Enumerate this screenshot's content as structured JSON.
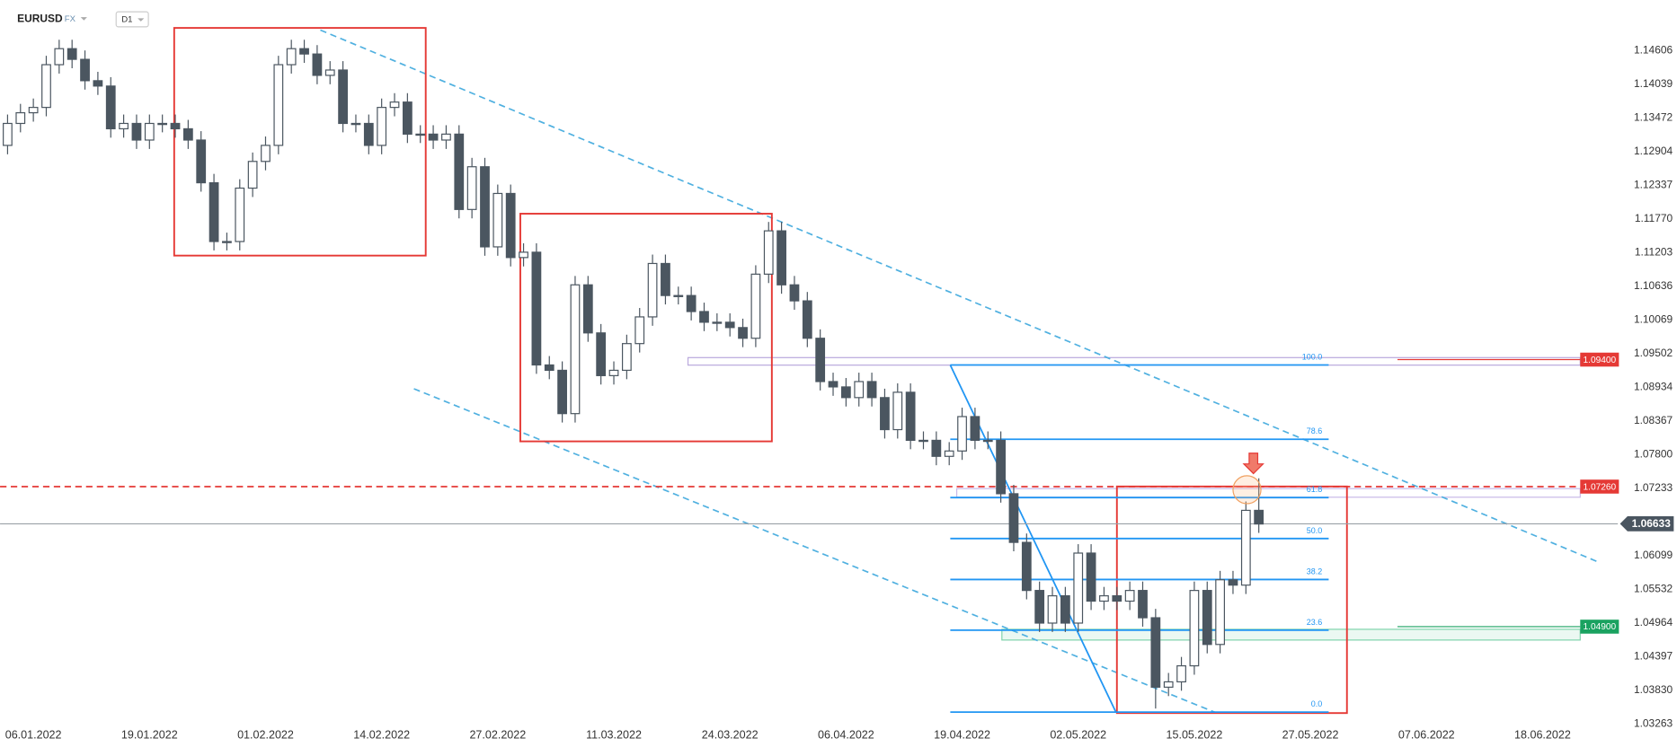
{
  "header": {
    "symbol": "EURUSD",
    "market": "FX",
    "interval": "D1"
  },
  "chart_data": {
    "type": "candlestick",
    "categories": [
      null,
      null,
      "06.01.2022",
      null,
      null,
      null,
      null,
      null,
      null,
      null,
      null,
      "19.01.2022",
      null,
      null,
      null,
      null,
      null,
      null,
      null,
      null,
      "01.02.2022",
      null,
      null,
      null,
      null,
      null,
      null,
      null,
      null,
      "14.02.2022",
      null,
      null,
      null,
      null,
      null,
      null,
      null,
      null,
      "27.02.2022",
      null,
      null,
      null,
      null,
      null,
      null,
      null,
      null,
      "11.03.2022",
      null,
      null,
      null,
      null,
      null,
      null,
      null,
      null,
      "24.03.2022",
      null,
      null,
      null,
      null,
      null,
      null,
      null,
      null,
      "06.04.2022",
      null,
      null,
      null,
      null,
      null,
      null,
      null,
      null,
      "19.04.2022",
      null,
      null,
      null,
      null,
      null,
      null,
      null,
      null,
      "02.05.2022",
      null,
      null,
      null,
      null,
      null,
      null,
      null,
      null,
      "15.05.2022",
      null,
      null,
      null,
      null,
      null,
      null,
      null,
      null,
      "27.05.2022",
      null,
      null,
      null,
      null,
      null,
      null,
      null,
      null,
      "07.06.2022",
      null,
      null,
      null,
      null,
      null,
      null,
      null,
      null,
      "18.06.2022",
      null,
      null,
      null,
      null,
      null
    ],
    "open": [
      1.1301,
      1.1338,
      1.1356,
      1.1365,
      1.1437,
      1.1464,
      1.1446,
      1.141,
      1.1401,
      1.1329,
      1.1338,
      1.131,
      1.1338,
      1.1338,
      1.1329,
      1.131,
      1.1238,
      1.1139,
      1.1139,
      1.1229,
      1.1274,
      1.1301,
      1.1437,
      1.1464,
      1.1455,
      1.1419,
      1.1428,
      1.1338,
      1.1338,
      1.1301,
      1.1365,
      1.1374,
      1.132,
      1.132,
      1.131,
      1.132,
      1.1193,
      1.1265,
      1.113,
      1.122,
      1.1112,
      1.1121,
      1.0931,
      1.0922,
      1.0849,
      1.1066,
      1.0985,
      1.0913,
      1.0922,
      1.0967,
      1.1012,
      1.1102,
      1.1048,
      1.1048,
      1.1021,
      1.1003,
      1.1003,
      1.0994,
      1.0976,
      1.1084,
      1.1157,
      1.1066,
      1.1039,
      1.0976,
      1.0903,
      1.0894,
      1.0876,
      1.0903,
      1.0876,
      1.0822,
      1.0885,
      1.0804,
      1.0804,
      1.0777,
      1.0786,
      1.0844,
      1.0804,
      1.0804,
      1.0714,
      1.0632,
      1.0551,
      1.0496,
      1.0542,
      1.0496,
      1.0614,
      1.0533,
      1.0542,
      1.0533,
      1.0551,
      1.0505,
      1.0388,
      1.0397,
      1.0424,
      1.0551,
      1.046,
      1.0569,
      1.056,
      1.0686,
      null,
      null,
      null,
      null,
      null,
      null,
      null,
      null,
      null,
      null,
      null,
      null,
      null,
      null,
      null,
      null,
      null,
      null,
      null,
      null,
      null,
      null,
      null,
      null,
      null,
      null,
      null
    ],
    "high": [
      1.1353,
      1.1371,
      1.138,
      1.1452,
      1.1479,
      1.1479,
      1.1461,
      1.1425,
      1.1416,
      1.1353,
      1.1353,
      1.1353,
      1.1353,
      1.1353,
      1.1344,
      1.1325,
      1.1253,
      1.1154,
      1.1244,
      1.1289,
      1.1316,
      1.1452,
      1.1479,
      1.1479,
      1.147,
      1.1443,
      1.1443,
      1.1353,
      1.1353,
      1.138,
      1.1389,
      1.1389,
      1.1335,
      1.1335,
      1.1335,
      1.1335,
      1.128,
      1.128,
      1.1235,
      1.1235,
      1.1136,
      1.1136,
      1.0946,
      1.0937,
      1.1081,
      1.1081,
      1.1,
      1.0937,
      1.0982,
      1.1027,
      1.1117,
      1.1117,
      1.1063,
      1.1063,
      1.1036,
      1.1018,
      1.1018,
      1.1009,
      1.1099,
      1.1172,
      1.1172,
      1.1081,
      1.1054,
      1.0991,
      1.0918,
      1.0909,
      1.0918,
      1.0918,
      1.0891,
      1.09,
      1.09,
      1.0819,
      1.0819,
      1.0801,
      1.0859,
      1.0859,
      1.0819,
      1.0819,
      1.0729,
      1.0647,
      1.0566,
      1.0557,
      1.0557,
      1.0629,
      1.0629,
      1.0557,
      1.0557,
      1.0566,
      1.0566,
      1.052,
      1.0412,
      1.0439,
      1.0566,
      1.0566,
      1.0584,
      1.0584,
      1.0701,
      1.074,
      null,
      null,
      null,
      null,
      null,
      null,
      null,
      null,
      null,
      null,
      null,
      null,
      null,
      null,
      null,
      null,
      null,
      null,
      null,
      null,
      null,
      null,
      null,
      null,
      null,
      null,
      null
    ],
    "low": [
      1.1286,
      1.1323,
      1.1341,
      1.135,
      1.1422,
      1.1431,
      1.1395,
      1.1386,
      1.1314,
      1.1314,
      1.1295,
      1.1295,
      1.1323,
      1.1314,
      1.1295,
      1.1223,
      1.1124,
      1.1124,
      1.1124,
      1.1214,
      1.1259,
      1.1286,
      1.1422,
      1.144,
      1.1404,
      1.1404,
      1.1323,
      1.1323,
      1.1286,
      1.1286,
      1.135,
      1.1305,
      1.1305,
      1.1295,
      1.1295,
      1.1178,
      1.1178,
      1.1115,
      1.1115,
      1.1097,
      1.1097,
      1.0916,
      1.0907,
      1.0834,
      1.0834,
      1.097,
      1.0898,
      1.0898,
      1.0907,
      1.0952,
      1.0997,
      1.1033,
      1.1033,
      1.1006,
      1.0988,
      1.0988,
      1.0979,
      1.0961,
      1.0961,
      1.1069,
      1.1051,
      1.1024,
      1.0961,
      1.0888,
      1.0879,
      1.0861,
      1.0861,
      1.0861,
      1.0807,
      1.0807,
      1.0789,
      1.0789,
      1.0762,
      1.0762,
      1.0771,
      1.0789,
      1.0789,
      1.0699,
      1.0617,
      1.0536,
      1.0481,
      1.0481,
      1.0481,
      1.0481,
      1.0518,
      1.0518,
      1.0518,
      1.0518,
      1.049,
      1.0352,
      1.0373,
      1.0382,
      1.0409,
      1.0445,
      1.0445,
      1.0545,
      1.0545,
      1.0648,
      null,
      null,
      null,
      null,
      null,
      null,
      null,
      null,
      null,
      null,
      null,
      null,
      null,
      null,
      null,
      null,
      null,
      null,
      null,
      null,
      null,
      null,
      null,
      null,
      null,
      null,
      null
    ],
    "close": [
      1.1338,
      1.1356,
      1.1365,
      1.1437,
      1.1464,
      1.1446,
      1.141,
      1.1401,
      1.1329,
      1.1338,
      1.131,
      1.1338,
      1.1338,
      1.1329,
      1.131,
      1.1238,
      1.1139,
      1.1139,
      1.1229,
      1.1274,
      1.1301,
      1.1437,
      1.1464,
      1.1455,
      1.1419,
      1.1428,
      1.1338,
      1.1338,
      1.1301,
      1.1365,
      1.1374,
      1.132,
      1.132,
      1.131,
      1.132,
      1.1193,
      1.1265,
      1.113,
      1.122,
      1.1112,
      1.1121,
      1.0931,
      1.0922,
      1.0849,
      1.1066,
      1.0985,
      1.0913,
      1.0922,
      1.0967,
      1.1012,
      1.1102,
      1.1048,
      1.1048,
      1.1021,
      1.1003,
      1.1003,
      1.0994,
      1.0976,
      1.1084,
      1.1157,
      1.1066,
      1.1039,
      1.0976,
      1.0903,
      1.0894,
      1.0876,
      1.0903,
      1.0876,
      1.0822,
      1.0885,
      1.0804,
      1.0804,
      1.0777,
      1.0786,
      1.0844,
      1.0804,
      1.0804,
      1.0714,
      1.0632,
      1.0551,
      1.0496,
      1.0542,
      1.0496,
      1.0614,
      1.0533,
      1.0542,
      1.0533,
      1.0551,
      1.0505,
      1.0388,
      1.0397,
      1.0424,
      1.0551,
      1.046,
      1.0569,
      1.056,
      1.0686,
      1.0663,
      null,
      null,
      null,
      null,
      null,
      null,
      null,
      null,
      null,
      null,
      null,
      null,
      null,
      null,
      null,
      null,
      null,
      null,
      null,
      null,
      null,
      null,
      null,
      null,
      null,
      null,
      null
    ],
    "up_color": "#ffffff",
    "down_color": "#4b5660",
    "ylim": [
      1.031,
      1.1546
    ],
    "yticks": [
      1.14606,
      1.14039,
      1.13472,
      1.12904,
      1.12337,
      {
        "value": 1.1177,
        "label": "1.11770"
      },
      1.11203,
      1.10636,
      1.10069,
      1.09502,
      1.08934,
      1.08367,
      {
        "value": 1.078,
        "label": "1.07800"
      },
      1.07233,
      1.06099,
      1.05532,
      1.04964,
      1.04397,
      {
        "value": 1.0383,
        "label": "1.03830"
      },
      1.03263
    ],
    "levels": [
      {
        "value": 1.094,
        "label": "1.09400",
        "color": "#e53935"
      },
      {
        "value": 1.0726,
        "label": "1.07260",
        "color": "#e53935",
        "dashed": true
      },
      {
        "value": 1.049,
        "label": "1.04900",
        "color": "#1aa260"
      }
    ],
    "current_price": {
      "value": 1.06633,
      "label": "1.06633",
      "color": "#4a5560"
    },
    "fibonacci": {
      "high": 1.0931,
      "low": 1.0346,
      "color": "#2196f3",
      "levels": [
        {
          "value": 100,
          "label": "100.0"
        },
        78.6,
        61.8,
        {
          "value": 50,
          "label": "50.0"
        },
        38.2,
        23.6,
        {
          "value": 0,
          "label": "0.0"
        }
      ]
    }
  }
}
